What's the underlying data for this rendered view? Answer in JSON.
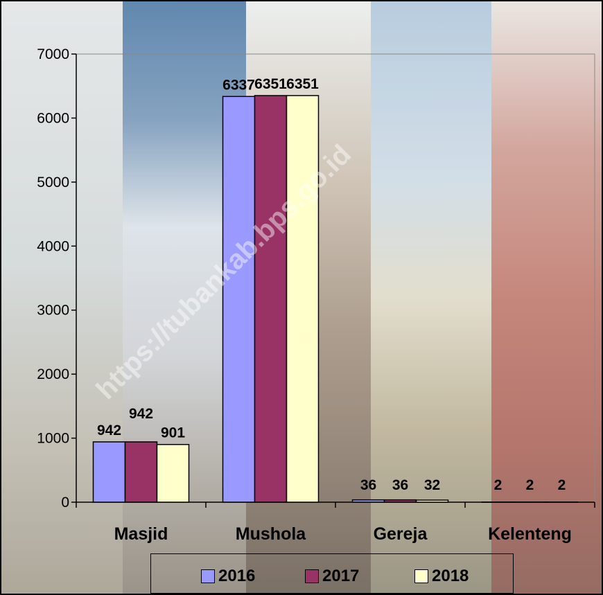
{
  "chart_data": {
    "type": "bar",
    "title": "",
    "xlabel": "",
    "ylabel": "",
    "categories": [
      "Masjid",
      "Mushola",
      "Gereja",
      "Kelenteng"
    ],
    "series": [
      {
        "name": "2016",
        "color": "#9999ff",
        "values": [
          942,
          6337,
          36,
          2
        ],
        "labels": [
          "942",
          "6337",
          "36",
          "2"
        ]
      },
      {
        "name": "2017",
        "color": "#993366",
        "values": [
          942,
          6351,
          36,
          2
        ],
        "labels": [
          "942",
          "6351",
          "36",
          "2"
        ]
      },
      {
        "name": "2018",
        "color": "#ffffcc",
        "values": [
          901,
          6351,
          32,
          2
        ],
        "labels": [
          "901",
          "6351",
          "32",
          "2"
        ]
      }
    ],
    "ylim": [
      0,
      7000
    ],
    "yticks": [
      0,
      1000,
      2000,
      3000,
      4000,
      5000,
      6000,
      7000
    ],
    "ytick_labels": [
      "0",
      "1000",
      "2000",
      "3000",
      "4000",
      "5000",
      "6000",
      "7000"
    ],
    "grid": false,
    "legend_position": "bottom"
  },
  "watermark": "https://tubankab.bps.go.id"
}
